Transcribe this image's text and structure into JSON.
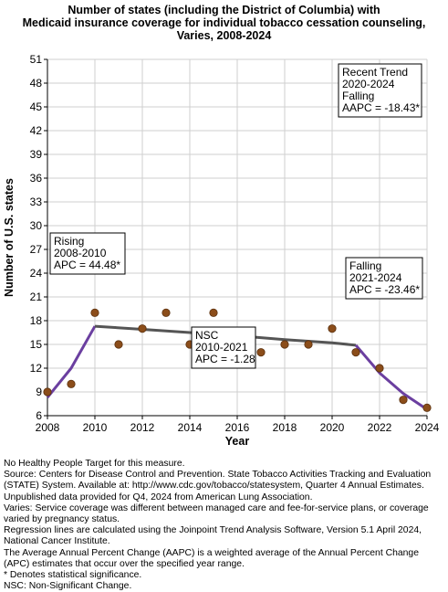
{
  "title_lines": [
    "Number of states (including the District of Columbia) with",
    "Medicaid insurance coverage for individual tobacco cessation counseling,",
    "Varies,  2008-2024"
  ],
  "chart_data": {
    "type": "scatter",
    "xlabel": "Year",
    "ylabel": "Number of U.S. states",
    "xlim": [
      2008,
      2024
    ],
    "ylim": [
      6,
      51
    ],
    "x_ticks": [
      2008,
      2010,
      2012,
      2014,
      2016,
      2018,
      2020,
      2022,
      2024
    ],
    "y_ticks": [
      6,
      9,
      12,
      15,
      18,
      21,
      24,
      27,
      30,
      33,
      36,
      39,
      42,
      45,
      48,
      51
    ],
    "grid": true,
    "points": {
      "x": [
        2008,
        2009,
        2010,
        2011,
        2012,
        2013,
        2014,
        2015,
        2016,
        2017,
        2018,
        2019,
        2020,
        2021,
        2022,
        2023,
        2024
      ],
      "y": [
        9,
        10,
        19,
        15,
        17,
        19,
        15,
        19,
        16,
        14,
        15,
        15,
        17,
        14,
        12,
        8,
        7
      ]
    },
    "trend_segments": [
      {
        "x": [
          2008,
          2009,
          2010
        ],
        "y": [
          8.3,
          12.0,
          17.3
        ],
        "color": "#6b3fa0"
      },
      {
        "x": [
          2010,
          2012,
          2014,
          2016,
          2018,
          2020,
          2021
        ],
        "y": [
          17.3,
          16.9,
          16.5,
          16.1,
          15.6,
          15.2,
          14.9
        ],
        "color": "#555555"
      },
      {
        "x": [
          2021,
          2022,
          2023,
          2024
        ],
        "y": [
          14.9,
          11.4,
          8.8,
          6.8
        ],
        "color": "#6b3fa0"
      }
    ],
    "annotations": [
      {
        "id": "rising",
        "lines": [
          "Rising",
          "2008-2010",
          "APC = 44.48*"
        ]
      },
      {
        "id": "nsc",
        "lines": [
          "NSC",
          "2010-2021",
          "APC = -1.28"
        ]
      },
      {
        "id": "falling",
        "lines": [
          "Falling",
          "2021-2024",
          "APC = -23.46*"
        ]
      },
      {
        "id": "recent",
        "lines": [
          "Recent Trend",
          "2020-2024",
          "Falling",
          "AAPC = -18.43*"
        ]
      }
    ],
    "colors": {
      "point": "#8b4d1a",
      "point_stroke": "#5a300e",
      "grid": "#cfcfcf"
    }
  },
  "footnotes": [
    "No Healthy People Target for this measure.",
    "Source: Centers for Disease Control and Prevention. State Tobacco Activities Tracking and Evaluation (STATE) System. Available at: http://www.cdc.gov/tobacco/statesystem, Quarter 4 Annual Estimates. Unpublished data provided for Q4, 2024 from American Lung Association.",
    "Varies: Service coverage was different between managed care and fee-for-service plans, or coverage varied by pregnancy status.",
    "Regression lines are calculated using the Joinpoint Trend Analysis Software, Version 5.1 April 2024, National Cancer Institute.",
    "The Average Annual Percent Change (AAPC) is a weighted average of the Annual Percent Change (APC) estimates that occur over the specified year range.",
    "* Denotes statistical significance.",
    "NSC: Non-Significant Change."
  ]
}
